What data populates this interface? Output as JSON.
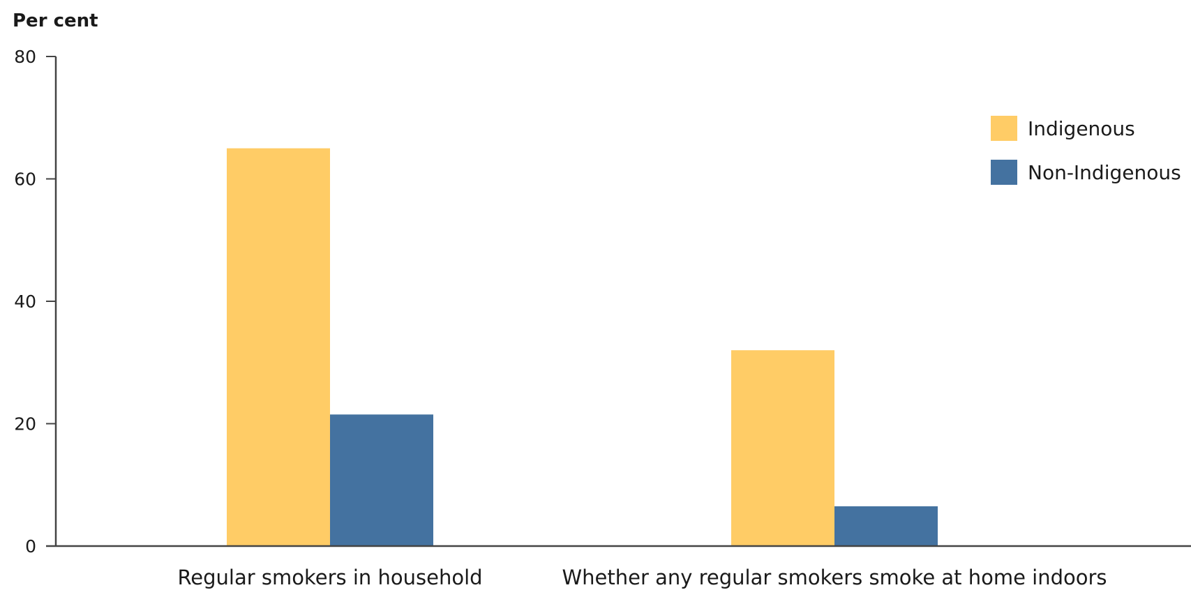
{
  "chart_data": {
    "type": "bar",
    "ylabel": "Per cent",
    "xlabel": "",
    "ylim": [
      0,
      80
    ],
    "yticks": [
      0,
      20,
      40,
      60,
      80
    ],
    "grid": false,
    "legend_position": "top-right",
    "categories": [
      "Regular smokers in household",
      "Whether any regular smokers smoke at home indoors"
    ],
    "series": [
      {
        "name": "Indigenous",
        "color": "#FFCC66",
        "values": [
          65,
          32
        ]
      },
      {
        "name": "Non-Indigenous",
        "color": "#4472A0",
        "values": [
          21.5,
          6.5
        ]
      }
    ]
  }
}
